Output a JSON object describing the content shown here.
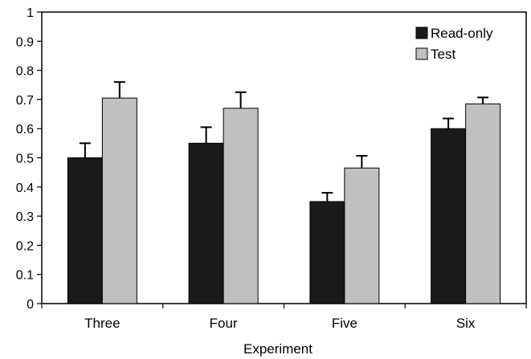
{
  "chart_data": {
    "type": "bar",
    "title": "",
    "xlabel": "Experiment",
    "ylabel": "",
    "ylim": [
      0,
      1
    ],
    "yticks": [
      "0",
      "0.1",
      "0.2",
      "0.3",
      "0.4",
      "0.5",
      "0.6",
      "0.7",
      "0.8",
      "0.9",
      "1"
    ],
    "categories": [
      "Three",
      "Four",
      "Five",
      "Six"
    ],
    "series": [
      {
        "name": "Read-only",
        "color": "#1a1a1a",
        "values": [
          0.5,
          0.55,
          0.35,
          0.6
        ],
        "errors": [
          0.05,
          0.055,
          0.03,
          0.035
        ]
      },
      {
        "name": "Test",
        "color": "#c0c0c0",
        "values": [
          0.705,
          0.67,
          0.465,
          0.685
        ],
        "errors": [
          0.055,
          0.055,
          0.042,
          0.022
        ]
      }
    ],
    "grid": false,
    "legend_position": "top-right",
    "error_bars": "upper"
  }
}
